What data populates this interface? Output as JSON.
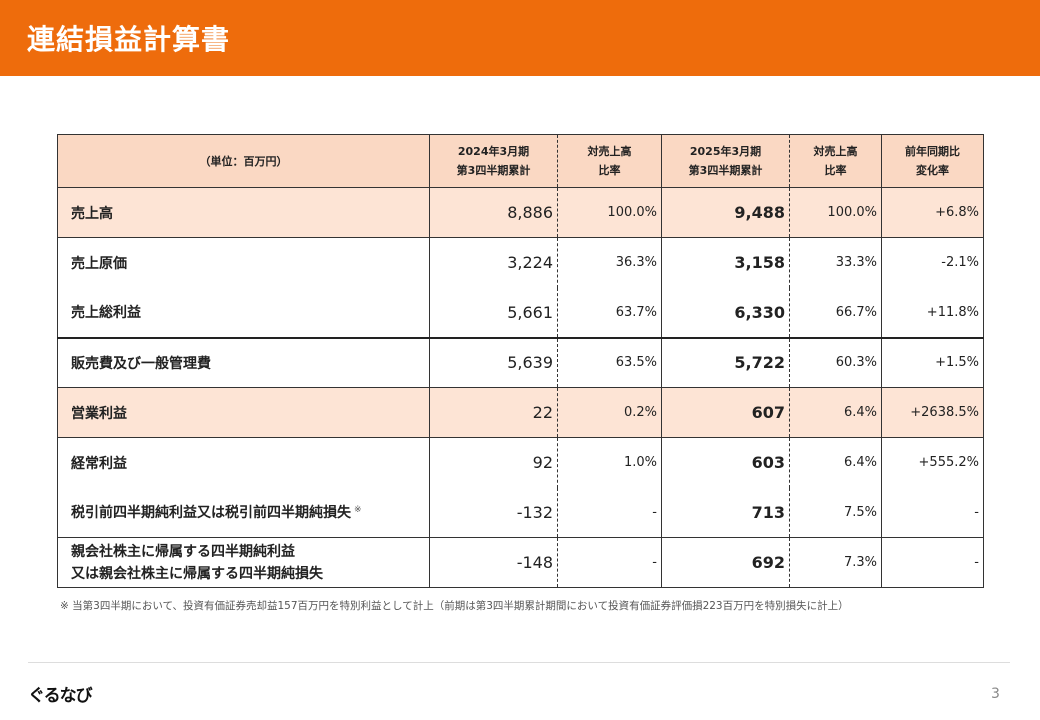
{
  "header": {
    "title": "連結損益計算書"
  },
  "table": {
    "columns": {
      "unit": "（単位：百万円）",
      "fy2024_line1": "2024年3月期",
      "fy2024_line2": "第3四半期累計",
      "ratio_line1": "対売上高",
      "ratio_line2": "比率",
      "fy2025_line1": "2025年3月期",
      "fy2025_line2": "第3四半期累計",
      "ratio2_line1": "対売上高",
      "ratio2_line2": "比率",
      "yoy_line1": "前年同期比",
      "yoy_line2": "変化率"
    },
    "rows": [
      {
        "label": "売上高",
        "v2024": "8,886",
        "r2024": "100.0%",
        "v2025": "9,488",
        "r2025": "100.0%",
        "yoy": "+6.8%"
      },
      {
        "label": "売上原価",
        "v2024": "3,224",
        "r2024": "36.3%",
        "v2025": "3,158",
        "r2025": "33.3%",
        "yoy": "-2.1%"
      },
      {
        "label": "売上総利益",
        "v2024": "5,661",
        "r2024": "63.7%",
        "v2025": "6,330",
        "r2025": "66.7%",
        "yoy": "+11.8%"
      },
      {
        "label": "販売費及び一般管理費",
        "v2024": "5,639",
        "r2024": "63.5%",
        "v2025": "5,722",
        "r2025": "60.3%",
        "yoy": "+1.5%"
      },
      {
        "label": "営業利益",
        "v2024": "22",
        "r2024": "0.2%",
        "v2025": "607",
        "r2025": "6.4%",
        "yoy": "+2638.5%"
      },
      {
        "label": "経常利益",
        "v2024": "92",
        "r2024": "1.0%",
        "v2025": "603",
        "r2025": "6.4%",
        "yoy": "+555.2%"
      },
      {
        "label": "税引前四半期純利益又は税引前四半期純損失",
        "mark": "※",
        "v2024": "-132",
        "r2024": "-",
        "v2025": "713",
        "r2025": "7.5%",
        "yoy": "-"
      },
      {
        "label_line1": "親会社株主に帰属する四半期純利益",
        "label_line2": "又は親会社株主に帰属する四半期純損失",
        "v2024": "-148",
        "r2024": "-",
        "v2025": "692",
        "r2025": "7.3%",
        "yoy": "-"
      }
    ]
  },
  "footnote": "※ 当第3四半期において、投資有価証券売却益157百万円を特別利益として計上（前期は第3四半期累計期間において投資有価証券評価損223百万円を特別損失に計上）",
  "footer": {
    "logo": "ぐるなび",
    "page_number": "3"
  }
}
